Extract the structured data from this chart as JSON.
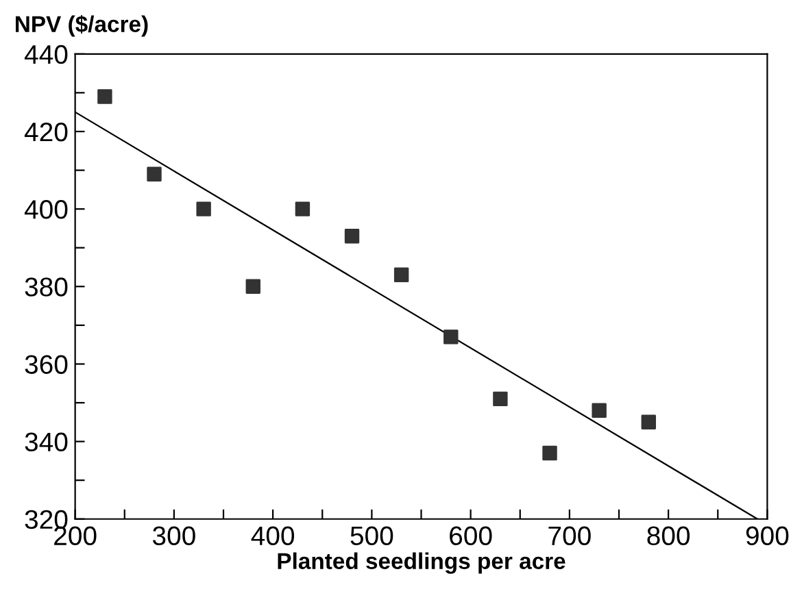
{
  "chart_data": {
    "type": "scatter",
    "ylabel": "NPV ($/acre)",
    "xlabel": "Planted seedlings per acre",
    "series": [
      {
        "color": "#333333",
        "marker": "square",
        "x": [
          230,
          280,
          330,
          380,
          430,
          480,
          530,
          580,
          630,
          680,
          730,
          780
        ],
        "values": [
          429,
          409,
          400,
          380,
          400,
          393,
          383,
          367,
          351,
          337,
          348,
          345
        ]
      },
      {
        "type": "line",
        "color": "#000000",
        "marker": "none",
        "line_style": "solid",
        "x": [
          200,
          890
        ],
        "values": [
          425,
          320
        ]
      }
    ],
    "xlim": [
      200,
      900
    ],
    "ylim": [
      320,
      440
    ],
    "xticks": [
      200,
      {
        "value": 250,
        "label": null
      },
      300,
      {
        "value": 350,
        "label": null
      },
      400,
      {
        "value": 450,
        "label": null
      },
      500,
      {
        "value": 550,
        "label": null
      },
      600,
      {
        "value": 650,
        "label": null
      },
      700,
      {
        "value": 750,
        "label": null
      },
      800,
      {
        "value": 850,
        "label": null
      },
      900
    ],
    "yticks": [
      320,
      {
        "value": 330,
        "label": null
      },
      340,
      {
        "value": 350,
        "label": null
      },
      360,
      {
        "value": 370,
        "label": null
      },
      380,
      {
        "value": 390,
        "label": null
      },
      400,
      {
        "value": 410,
        "label": null
      },
      420,
      {
        "value": 430,
        "label": null
      },
      440
    ],
    "grid": false,
    "legend": false
  }
}
